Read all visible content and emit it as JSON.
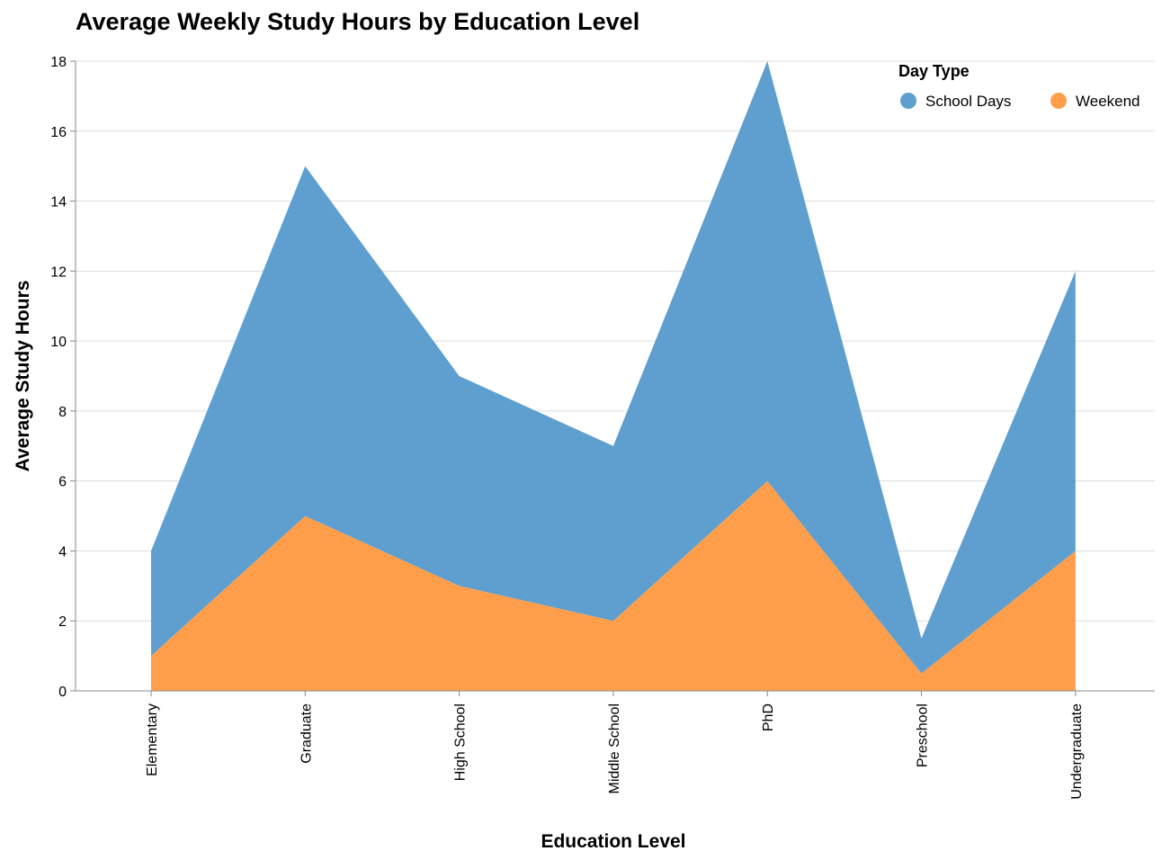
{
  "chart_data": {
    "type": "area",
    "stacked": true,
    "title": "Average Weekly Study Hours by Education Level",
    "xlabel": "Education Level",
    "ylabel": "Average Study Hours",
    "categories": [
      "Elementary",
      "Graduate",
      "High School",
      "Middle School",
      "PhD",
      "Preschool",
      "Undergraduate"
    ],
    "ylim": [
      0,
      18
    ],
    "yticks": [
      0,
      2,
      4,
      6,
      8,
      10,
      12,
      14,
      16,
      18
    ],
    "grid": true,
    "legend": {
      "title": "Day Type",
      "placement": "top-right"
    },
    "series": [
      {
        "name": "Weekend",
        "values": [
          1,
          5,
          3,
          2,
          6,
          0.5,
          4
        ],
        "color": "#ff9e4a"
      },
      {
        "name": "School Days",
        "values": [
          3,
          10,
          6,
          5,
          12,
          1,
          8
        ],
        "color": "#5e9fcf"
      }
    ]
  }
}
